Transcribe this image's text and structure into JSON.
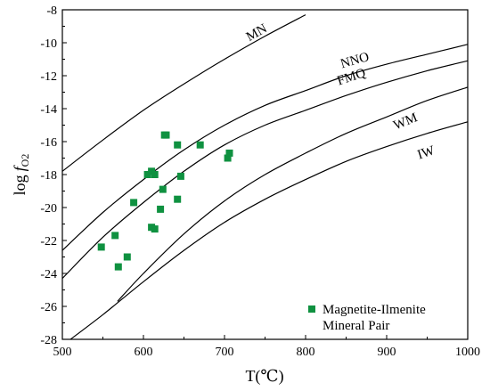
{
  "chart_data": {
    "type": "scatter",
    "xlabel": "T(℃)",
    "ylabel_main": "log",
    "ylabel_f": "f",
    "ylabel_sub": "O2",
    "xlim": [
      500,
      1000
    ],
    "ylim": [
      -28,
      -8
    ],
    "x_ticks": [
      "500",
      "600",
      "700",
      "800",
      "900",
      "1000"
    ],
    "y_ticks": [
      "-28",
      "-26",
      "-24",
      "-22",
      "-20",
      "-18",
      "-16",
      "-14",
      "-12",
      "-10",
      "-8"
    ],
    "x_tick_values": [
      500,
      600,
      700,
      800,
      900,
      1000
    ],
    "y_tick_values": [
      -28,
      -26,
      -24,
      -22,
      -20,
      -18,
      -16,
      -14,
      -12,
      -10,
      -8
    ],
    "buffer_curves": [
      {
        "name": "MN",
        "x": [
          500,
          550,
          600,
          650,
          700,
          750,
          800
        ],
        "y": [
          -17.8,
          -15.9,
          -14.1,
          -12.5,
          -11.0,
          -9.6,
          -8.3
        ],
        "label_at": [
          742,
          -9.6
        ]
      },
      {
        "name": "NNO",
        "x": [
          500,
          550,
          600,
          650,
          700,
          750,
          800,
          850,
          900,
          950,
          1000
        ],
        "y": [
          -22.6,
          -20.3,
          -18.3,
          -16.5,
          -15.0,
          -13.8,
          -12.9,
          -12.0,
          -11.3,
          -10.7,
          -10.1
        ],
        "label_at": [
          862,
          -11.3
        ]
      },
      {
        "name": "FMQ",
        "x": [
          500,
          550,
          600,
          650,
          700,
          750,
          800,
          850,
          900,
          950,
          1000
        ],
        "y": [
          -24.3,
          -21.8,
          -19.7,
          -17.8,
          -16.2,
          -15.0,
          -14.1,
          -13.2,
          -12.4,
          -11.7,
          -11.1
        ],
        "label_at": [
          858,
          -12.3
        ]
      },
      {
        "name": "WM",
        "x": [
          568,
          600,
          650,
          700,
          750,
          800,
          850,
          900,
          950,
          1000
        ],
        "y": [
          -25.7,
          -24.0,
          -21.6,
          -19.6,
          -18.0,
          -16.7,
          -15.5,
          -14.5,
          -13.5,
          -12.7
        ],
        "label_at": [
          925,
          -15.0
        ]
      },
      {
        "name": "IW",
        "x": [
          510,
          550,
          600,
          650,
          700,
          750,
          800,
          850,
          900,
          950,
          1000
        ],
        "y": [
          -28.0,
          -26.5,
          -24.5,
          -22.6,
          -20.9,
          -19.5,
          -18.3,
          -17.2,
          -16.3,
          -15.5,
          -14.8
        ],
        "label_at": [
          950,
          -16.9
        ]
      }
    ],
    "series": [
      {
        "name": "Magnetite-Ilmenite Mineral Pair",
        "color": "#0f9140",
        "marker": "square",
        "x": [
          548,
          565,
          569,
          580,
          588,
          605,
          610,
          610,
          614,
          614,
          621,
          624,
          626,
          628,
          642,
          642,
          646,
          670,
          704,
          706
        ],
        "y": [
          -22.4,
          -21.7,
          -23.6,
          -23.0,
          -19.7,
          -18.0,
          -17.8,
          -21.2,
          -21.3,
          -18.0,
          -20.1,
          -18.9,
          -15.6,
          -15.6,
          -16.2,
          -19.5,
          -18.1,
          -16.2,
          -17.0,
          -16.7
        ]
      }
    ],
    "legend": {
      "placement": "bottom-right",
      "line1": "Magnetite-Ilmenite",
      "line2": "Mineral Pair"
    },
    "grid": false
  }
}
